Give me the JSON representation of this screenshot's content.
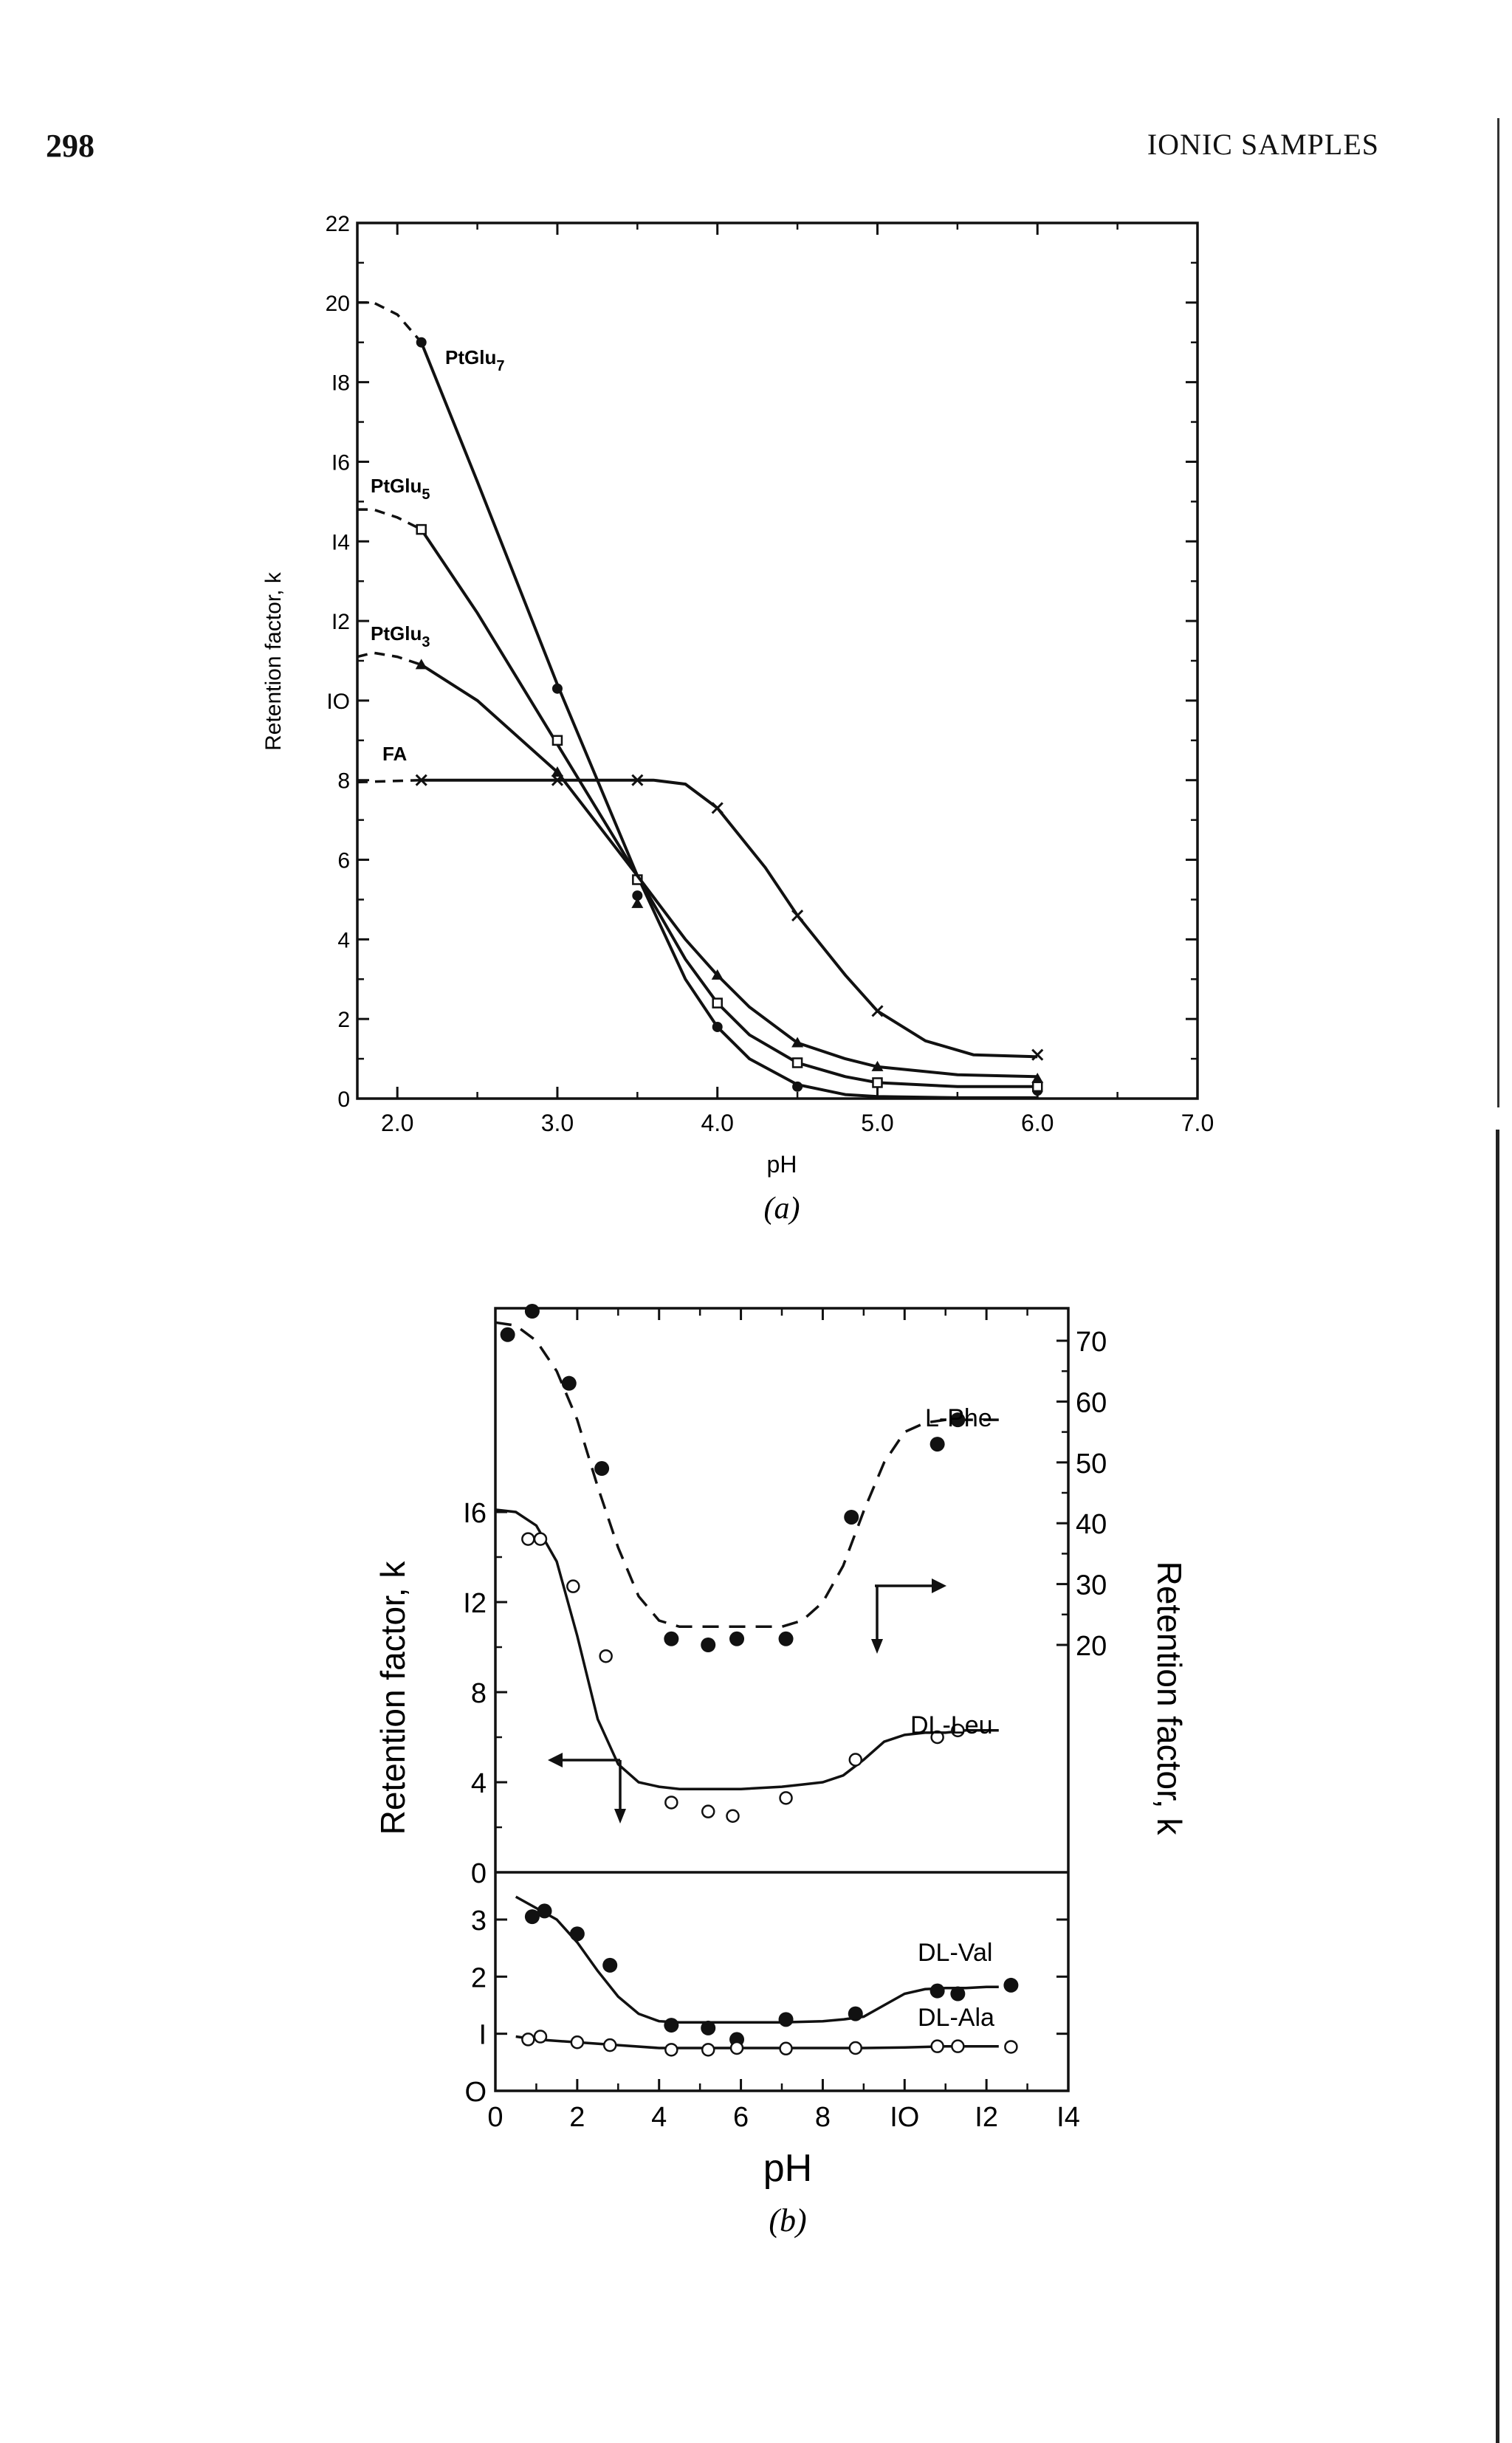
{
  "page": {
    "page_number": "298",
    "running_head": "IONIC SAMPLES"
  },
  "chart_data": [
    {
      "type": "line",
      "panel_label": "(a)",
      "xlabel": "pH",
      "ylabel": "Retention factor, k",
      "xlim": [
        1.75,
        7.0
      ],
      "ylim": [
        0,
        22
      ],
      "x_ticks": [
        "2.0",
        "3.0",
        "4.0",
        "5.0",
        "6.0",
        "7.0"
      ],
      "y_ticks": [
        "0",
        "2",
        "4",
        "6",
        "8",
        "IO",
        "I2",
        "I4",
        "I6",
        "I8",
        "20",
        "22"
      ],
      "series": [
        {
          "name": "PtGlu7",
          "label_main": "PtGlu",
          "label_sub": "7",
          "marker": "dot",
          "dashed_x": [
            1.75,
            1.85,
            2.0,
            2.15
          ],
          "dashed_y": [
            20.0,
            20.0,
            19.7,
            19.0
          ],
          "curve_x": [
            2.15,
            2.5,
            3.0,
            3.5,
            3.8,
            4.0,
            4.2,
            4.5,
            4.8,
            5.0,
            5.5,
            6.0
          ],
          "curve_y": [
            19.0,
            15.5,
            10.4,
            5.6,
            3.0,
            1.8,
            1.0,
            0.35,
            0.1,
            0.05,
            0.02,
            0.02
          ],
          "points_x": [
            2.15,
            3.0,
            3.5,
            4.0,
            4.5,
            6.0
          ],
          "points_y": [
            19.0,
            10.3,
            5.1,
            1.8,
            0.3,
            0.2
          ]
        },
        {
          "name": "PtGlu5",
          "label_main": "PtGlu",
          "label_sub": "5",
          "marker": "square",
          "dashed_x": [
            1.75,
            1.85,
            2.0,
            2.15
          ],
          "dashed_y": [
            14.8,
            14.8,
            14.6,
            14.3
          ],
          "curve_x": [
            2.15,
            2.5,
            3.0,
            3.5,
            3.8,
            4.0,
            4.2,
            4.5,
            4.8,
            5.0,
            5.5,
            6.0
          ],
          "curve_y": [
            14.3,
            12.2,
            8.9,
            5.6,
            3.5,
            2.4,
            1.6,
            0.9,
            0.55,
            0.4,
            0.3,
            0.3
          ],
          "points_x": [
            2.15,
            3.0,
            3.5,
            4.0,
            4.5,
            5.0,
            6.0
          ],
          "points_y": [
            14.3,
            9.0,
            5.5,
            2.4,
            0.9,
            0.4,
            0.3
          ]
        },
        {
          "name": "PtGlu3",
          "label_main": "PtGlu",
          "label_sub": "3",
          "marker": "triangle",
          "dashed_x": [
            1.75,
            1.85,
            2.0,
            2.15
          ],
          "dashed_y": [
            11.1,
            11.2,
            11.1,
            10.9
          ],
          "curve_x": [
            2.15,
            2.5,
            3.0,
            3.5,
            3.8,
            4.0,
            4.2,
            4.5,
            4.8,
            5.0,
            5.5,
            6.0
          ],
          "curve_y": [
            10.9,
            10.0,
            8.2,
            5.6,
            4.0,
            3.1,
            2.3,
            1.4,
            1.0,
            0.8,
            0.6,
            0.55
          ],
          "points_x": [
            2.15,
            3.0,
            3.5,
            4.0,
            4.5,
            5.0,
            6.0
          ],
          "points_y": [
            10.9,
            8.2,
            4.9,
            3.1,
            1.4,
            0.8,
            0.5
          ]
        },
        {
          "name": "FA",
          "label_main": "FA",
          "label_sub": "",
          "marker": "cross",
          "dashed_x": [
            1.75,
            2.15
          ],
          "dashed_y": [
            7.95,
            8.0
          ],
          "curve_x": [
            2.15,
            2.5,
            3.0,
            3.3,
            3.5,
            3.6,
            3.8,
            4.0,
            4.3,
            4.5,
            4.8,
            5.0,
            5.3,
            5.6,
            6.0
          ],
          "curve_y": [
            8.0,
            8.0,
            8.0,
            8.0,
            8.0,
            8.0,
            7.9,
            7.3,
            5.8,
            4.6,
            3.1,
            2.2,
            1.45,
            1.1,
            1.05
          ],
          "points_x": [
            2.15,
            3.0,
            3.5,
            4.0,
            4.5,
            5.0,
            6.0
          ],
          "points_y": [
            8.0,
            8.0,
            8.0,
            7.3,
            4.6,
            2.2,
            1.1
          ]
        }
      ]
    },
    {
      "type": "scatter",
      "panel_label": "(b)",
      "xlabel": "pH",
      "ylabel_left": "Retention factor, k",
      "ylabel_right": "Retention factor, k",
      "xlim": [
        0,
        14
      ],
      "x_ticks": [
        "0",
        "2",
        "4",
        "6",
        "8",
        "IO",
        "I2",
        "I4"
      ],
      "upper_left_ticks": [
        "0",
        "4",
        "8",
        "I2",
        "I6"
      ],
      "upper_left_ylim": [
        0,
        20
      ],
      "upper_right_ticks": [
        "20",
        "30",
        "40",
        "50",
        "60",
        "70"
      ],
      "upper_right_ylim": [
        10,
        74
      ],
      "lower_ticks": [
        "O",
        "I",
        "2",
        "3"
      ],
      "lower_ylim": [
        0,
        3.6
      ],
      "series": [
        {
          "name": "L-Phe",
          "axis": "right",
          "marker": "filled",
          "line": "dashed",
          "x": [
            0.3,
            0.9,
            1.8,
            2.6,
            4.3,
            5.2,
            5.9,
            7.1,
            8.7,
            10.8,
            11.3
          ],
          "y": [
            71,
            79,
            63,
            49,
            21,
            20,
            21,
            21,
            41,
            53,
            57
          ],
          "curve_x": [
            0,
            0.5,
            1.0,
            1.5,
            2.0,
            2.5,
            3.0,
            3.5,
            4.0,
            4.5,
            5.0,
            6.0,
            7.0,
            7.5,
            8.0,
            8.5,
            9.0,
            9.5,
            10.0,
            10.5,
            11.0,
            11.5,
            12.3
          ],
          "curve_y": [
            73,
            72.5,
            70,
            65,
            57,
            46,
            36,
            28,
            24,
            23,
            23,
            23,
            23,
            24,
            27,
            33,
            42,
            50,
            55,
            56.5,
            57,
            57,
            57
          ]
        },
        {
          "name": "DL-Leu",
          "axis": "left",
          "marker": "open",
          "line": "solid",
          "x": [
            0.8,
            1.1,
            1.9,
            2.7,
            4.3,
            5.2,
            5.8,
            7.1,
            8.8,
            10.8,
            11.3
          ],
          "y": [
            14.8,
            14.8,
            12.7,
            9.6,
            3.1,
            2.7,
            2.5,
            3.3,
            5.0,
            6.0,
            6.3
          ],
          "curve_x": [
            0,
            0.5,
            1.0,
            1.5,
            2.0,
            2.5,
            3.0,
            3.5,
            4.0,
            4.5,
            5.0,
            6.0,
            7.0,
            7.5,
            8.0,
            8.5,
            9.0,
            9.5,
            10.0,
            10.5,
            11.0,
            11.5,
            12.3
          ],
          "curve_y": [
            16.1,
            16.0,
            15.4,
            13.8,
            10.5,
            6.8,
            4.8,
            4.0,
            3.8,
            3.7,
            3.7,
            3.7,
            3.8,
            3.9,
            4.0,
            4.3,
            5.0,
            5.8,
            6.1,
            6.2,
            6.2,
            6.3,
            6.3
          ]
        },
        {
          "name": "DL-Val",
          "axis": "lower",
          "marker": "filled",
          "line": "solid",
          "x": [
            0.9,
            1.2,
            2.0,
            2.8,
            4.3,
            5.2,
            5.9,
            7.1,
            8.8,
            10.8,
            11.3,
            12.6
          ],
          "y": [
            3.05,
            3.15,
            2.75,
            2.2,
            1.15,
            1.1,
            0.9,
            1.25,
            1.35,
            1.75,
            1.7,
            1.85
          ],
          "curve_x": [
            0.5,
            1.0,
            1.5,
            2.0,
            2.5,
            3.0,
            3.5,
            4.0,
            4.5,
            5.0,
            6.0,
            7.0,
            8.0,
            8.5,
            9.0,
            9.5,
            10.0,
            10.5,
            11.0,
            11.5,
            12.0,
            12.3
          ],
          "curve_y": [
            3.4,
            3.2,
            3.0,
            2.6,
            2.1,
            1.65,
            1.35,
            1.22,
            1.2,
            1.2,
            1.2,
            1.2,
            1.22,
            1.25,
            1.3,
            1.5,
            1.7,
            1.78,
            1.8,
            1.8,
            1.82,
            1.82
          ]
        },
        {
          "name": "DL-Ala",
          "axis": "lower",
          "marker": "open",
          "line": "solid",
          "x": [
            0.8,
            1.1,
            2.0,
            2.8,
            4.3,
            5.2,
            5.9,
            7.1,
            8.8,
            10.8,
            11.3,
            12.6
          ],
          "y": [
            0.9,
            0.95,
            0.85,
            0.8,
            0.72,
            0.72,
            0.75,
            0.74,
            0.75,
            0.78,
            0.78,
            0.77
          ],
          "curve_x": [
            0.5,
            1.0,
            2.0,
            3.0,
            4.0,
            5.0,
            6.0,
            7.0,
            8.0,
            9.0,
            10.0,
            11.0,
            12.0,
            12.3
          ],
          "curve_y": [
            0.95,
            0.9,
            0.85,
            0.8,
            0.75,
            0.75,
            0.75,
            0.75,
            0.75,
            0.75,
            0.76,
            0.78,
            0.78,
            0.78
          ]
        }
      ]
    }
  ]
}
